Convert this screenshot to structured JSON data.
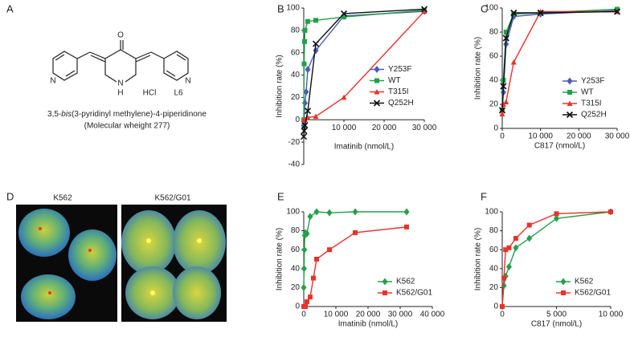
{
  "panel_labels": [
    "A",
    "B",
    "C",
    "D",
    "E",
    "F"
  ],
  "compound": {
    "atoms": [
      "O",
      "N",
      "H",
      "HCl",
      "N",
      "L6",
      "N"
    ],
    "name_prefix": "3,5-",
    "name_italic": "bis",
    "name_rest": "(3-pyridinyl methylene)-4-piperidinone",
    "weight": "(Molecular wheight 277)"
  },
  "images": {
    "labels": [
      "K562",
      "K562/G01"
    ]
  },
  "chart_data": [
    {
      "type": "line",
      "xlabel": "Imatinib (nmol/L)",
      "ylabel": "Inhibition rate (%)",
      "xlim": [
        0,
        30000
      ],
      "xticks": [
        0,
        {
          "value": 10000,
          "label": "10 000"
        },
        {
          "value": 20000,
          "label": "20 000"
        },
        {
          "value": 30000,
          "label": "30 000"
        }
      ],
      "ylim": [
        -40,
        100
      ],
      "yticks": [
        -40,
        -20,
        0,
        20,
        40,
        60,
        80,
        100
      ],
      "legend": "center right",
      "series": [
        {
          "name": "Y253F",
          "color": "#4a5cb8",
          "marker": "diamond",
          "x": [
            0,
            300,
            600,
            1000,
            3000,
            10000,
            30000
          ],
          "values": [
            -5,
            15,
            25,
            45,
            62,
            93,
            97
          ]
        },
        {
          "name": "WT",
          "color": "#22a04a",
          "marker": "square",
          "x": [
            0,
            100,
            200,
            300,
            1000,
            3000,
            10000,
            30000
          ],
          "values": [
            0,
            50,
            70,
            80,
            88,
            89,
            92,
            98
          ]
        },
        {
          "name": "T315I",
          "color": "#e8322b",
          "marker": "triangle",
          "x": [
            0,
            300,
            1000,
            3000,
            10000,
            30000
          ],
          "values": [
            0,
            0,
            2,
            3,
            20,
            97
          ]
        },
        {
          "name": "Q252H",
          "color": "#111111",
          "marker": "x",
          "x": [
            0,
            100,
            300,
            1000,
            3000,
            10000,
            30000
          ],
          "values": [
            -15,
            -10,
            -5,
            8,
            68,
            95,
            99
          ]
        }
      ]
    },
    {
      "type": "line",
      "xlabel": "C817 (nmol/L)",
      "ylabel": "Inhibition rate (%)",
      "xlim": [
        0,
        30000
      ],
      "xticks": [
        0,
        {
          "value": 10000,
          "label": "10 000"
        },
        {
          "value": 20000,
          "label": "20 000"
        },
        {
          "value": 30000,
          "label": "30 000"
        }
      ],
      "ylim": [
        0,
        100
      ],
      "yticks": [
        0,
        20,
        40,
        60,
        80,
        100
      ],
      "legend": "lower right",
      "series": [
        {
          "name": "Y253F",
          "color": "#4a5cb8",
          "marker": "diamond",
          "x": [
            0,
            300,
            1000,
            3000,
            10000,
            30000
          ],
          "values": [
            15,
            30,
            70,
            93,
            95,
            98
          ]
        },
        {
          "name": "WT",
          "color": "#22a04a",
          "marker": "square",
          "x": [
            0,
            300,
            1000,
            3000,
            10000,
            30000
          ],
          "values": [
            15,
            40,
            80,
            95,
            96,
            99
          ]
        },
        {
          "name": "T315I",
          "color": "#e8322b",
          "marker": "triangle",
          "x": [
            0,
            300,
            1000,
            3000,
            10000,
            30000
          ],
          "values": [
            12,
            20,
            22,
            55,
            97,
            97
          ]
        },
        {
          "name": "Q252H",
          "color": "#111111",
          "marker": "x",
          "x": [
            0,
            300,
            1000,
            3000,
            10000,
            30000
          ],
          "values": [
            15,
            35,
            75,
            96,
            96,
            97
          ]
        }
      ]
    },
    {
      "type": "line",
      "xlabel": "Imatinib (nmol/L)",
      "ylabel": "Inhibition rate (%)",
      "xlim": [
        0,
        40000
      ],
      "xticks": [
        0,
        {
          "value": 10000,
          "label": "10 000"
        },
        {
          "value": 20000,
          "label": "20 000"
        },
        {
          "value": 30000,
          "label": "30 000"
        },
        {
          "value": 40000,
          "label": "40 000"
        }
      ],
      "ylim": [
        0,
        100
      ],
      "yticks": [
        0,
        20,
        40,
        60,
        80,
        100
      ],
      "legend": "lower right",
      "series": [
        {
          "name": "K562",
          "color": "#22a04a",
          "marker": "diamond",
          "x": [
            0,
            100,
            200,
            300,
            500,
            1000,
            2000,
            4000,
            8000,
            16000,
            32000
          ],
          "values": [
            20,
            40,
            60,
            75,
            78,
            77,
            95,
            100,
            99,
            100,
            100
          ]
        },
        {
          "name": "K562/G01",
          "color": "#e8322b",
          "marker": "square",
          "x": [
            0,
            500,
            1000,
            2000,
            3000,
            4000,
            8000,
            16000,
            32000
          ],
          "values": [
            0,
            0,
            5,
            10,
            30,
            50,
            60,
            78,
            84
          ]
        }
      ]
    },
    {
      "type": "line",
      "xlabel": "C817 (nmol/L)",
      "ylabel": "Inhibition rate (%)",
      "xlim": [
        0,
        10000
      ],
      "xticks": [
        0,
        {
          "value": 5000,
          "label": "5 000"
        },
        {
          "value": 10000,
          "label": "10 000"
        }
      ],
      "ylim": [
        0,
        100
      ],
      "yticks": [
        0,
        20,
        40,
        60,
        80,
        100
      ],
      "legend": "lower right",
      "series": [
        {
          "name": "K562",
          "color": "#22a04a",
          "marker": "diamond",
          "x": [
            0,
            156,
            312,
            625,
            1250,
            2500,
            5000,
            10000
          ],
          "values": [
            0,
            22,
            32,
            42,
            62,
            72,
            93,
            100
          ]
        },
        {
          "name": "K562/G01",
          "color": "#e8322b",
          "marker": "square",
          "x": [
            0,
            156,
            312,
            625,
            1250,
            2500,
            5000,
            10000
          ],
          "values": [
            0,
            30,
            60,
            62,
            72,
            86,
            98,
            100
          ]
        }
      ]
    }
  ]
}
